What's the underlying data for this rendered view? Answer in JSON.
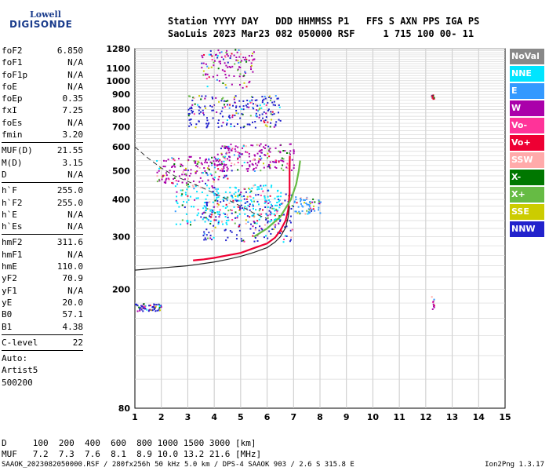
{
  "logo": {
    "top": "Lowell",
    "bottom": "DIGISONDE"
  },
  "header": {
    "line1": "Station YYYY DAY   DDD HHMMSS P1   FFS S AXN PPS IGA PS",
    "line2": "SaoLuis 2023 Mar23 082 050000 RSF     1 715 100 00- 11"
  },
  "params": [
    {
      "group": [
        [
          "foF2",
          "6.850"
        ],
        [
          "foF1",
          "N/A"
        ],
        [
          "foF1p",
          "N/A"
        ],
        [
          "foE",
          "N/A"
        ],
        [
          "foEp",
          "0.35"
        ],
        [
          "fxI",
          "7.25"
        ],
        [
          "foEs",
          "N/A"
        ],
        [
          "fmin",
          "3.20"
        ]
      ]
    },
    {
      "group": [
        [
          "MUF(D)",
          "21.55"
        ],
        [
          "M(D)",
          "3.15"
        ],
        [
          "D",
          "N/A"
        ]
      ]
    },
    {
      "group": [
        [
          "h`F",
          "255.0"
        ],
        [
          "h`F2",
          "255.0"
        ],
        [
          "h`E",
          "N/A"
        ],
        [
          "h`Es",
          "N/A"
        ]
      ]
    },
    {
      "group": [
        [
          "hmF2",
          "311.6"
        ],
        [
          "hmF1",
          "N/A"
        ],
        [
          "hmE",
          "110.0"
        ],
        [
          "yF2",
          "70.9"
        ],
        [
          "yF1",
          "N/A"
        ],
        [
          "yE",
          "20.0"
        ],
        [
          "B0",
          "57.1"
        ],
        [
          "B1",
          "4.38"
        ]
      ]
    },
    {
      "group": [
        [
          "C-level",
          "22"
        ]
      ]
    }
  ],
  "auto": [
    "Auto:",
    "Artist5",
    "500200"
  ],
  "legend": [
    {
      "label": "NoVal",
      "color": "#888888"
    },
    {
      "label": "NNE",
      "color": "#00e5ff"
    },
    {
      "label": "E",
      "color": "#3399ff"
    },
    {
      "label": "W",
      "color": "#aa00aa"
    },
    {
      "label": "Vo-",
      "color": "#ff3399"
    },
    {
      "label": "Vo+",
      "color": "#ee0033"
    },
    {
      "label": "SSW",
      "color": "#ffaaaa"
    },
    {
      "label": "X-",
      "color": "#007700"
    },
    {
      "label": "X+",
      "color": "#66bb44"
    },
    {
      "label": "SSE",
      "color": "#cccc00"
    },
    {
      "label": "NNW",
      "color": "#2222cc"
    }
  ],
  "dmuf": {
    "d_line": "D     100  200  400  600  800 1000 1500 3000 [km]",
    "muf_line": "MUF   7.2  7.3  7.6  8.1  8.9 10.0 13.2 21.6 [MHz]"
  },
  "footer": "SAAOK_2023082050000.RSF / 280fx256h 50 kHz 5.0 km / DPS-4 SAAOK 903 / 2.6 S 315.8 E",
  "version": "Ion2Png 1.3.17",
  "chart_data": {
    "type": "scatter",
    "title": "",
    "xlabel": "",
    "ylabel": "",
    "xlim": [
      1,
      15
    ],
    "ylim": [
      80,
      1280
    ],
    "y_scale": "log",
    "x_ticks": [
      "1",
      "2",
      "3",
      "4",
      "5",
      "6",
      "7",
      "8",
      "9",
      "10",
      "11",
      "12",
      "13",
      "14",
      "15"
    ],
    "y_ticks": [
      "1280",
      "1100",
      "1000",
      "900",
      "800",
      "700",
      "600",
      "500",
      "400",
      "300",
      "200",
      "80"
    ],
    "y_tick_values": [
      1280,
      1100,
      1000,
      900,
      800,
      700,
      600,
      500,
      400,
      300,
      200,
      80
    ],
    "grid": true,
    "traces": [
      {
        "name": "O-trace",
        "color": "#ee0033",
        "points": [
          [
            3.2,
            250
          ],
          [
            3.6,
            252
          ],
          [
            4.0,
            255
          ],
          [
            4.5,
            260
          ],
          [
            5.0,
            265
          ],
          [
            5.5,
            275
          ],
          [
            6.0,
            285
          ],
          [
            6.3,
            298
          ],
          [
            6.5,
            315
          ],
          [
            6.7,
            340
          ],
          [
            6.8,
            370
          ],
          [
            6.85,
            420
          ],
          [
            6.85,
            500
          ],
          [
            6.86,
            560
          ]
        ]
      },
      {
        "name": "X-trace",
        "color": "#66bb44",
        "points": [
          [
            5.5,
            300
          ],
          [
            6.0,
            320
          ],
          [
            6.5,
            350
          ],
          [
            6.9,
            400
          ],
          [
            7.1,
            450
          ],
          [
            7.2,
            500
          ],
          [
            7.25,
            540
          ]
        ]
      },
      {
        "name": "model",
        "color": "#222222",
        "points": [
          [
            1.0,
            232
          ],
          [
            2.0,
            236
          ],
          [
            3.0,
            240
          ],
          [
            4.0,
            247
          ],
          [
            4.5,
            252
          ],
          [
            5.0,
            258
          ],
          [
            5.5,
            266
          ],
          [
            6.0,
            276
          ],
          [
            6.3,
            288
          ],
          [
            6.5,
            300
          ],
          [
            6.7,
            322
          ],
          [
            6.8,
            350
          ],
          [
            6.85,
            380
          ]
        ]
      },
      {
        "name": "dashed",
        "color": "#333333",
        "points": [
          [
            1.0,
            600
          ],
          [
            1.5,
            550
          ],
          [
            2.0,
            510
          ],
          [
            2.5,
            480
          ],
          [
            3.0,
            460
          ],
          [
            3.5,
            440
          ],
          [
            4.0,
            420
          ],
          [
            4.5,
            400
          ],
          [
            5.0,
            380
          ],
          [
            5.5,
            360
          ],
          [
            6.0,
            345
          ]
        ]
      }
    ],
    "scatter_clusters": [
      {
        "x0": 1.0,
        "x1": 2.0,
        "y0": 170,
        "y1": 180,
        "color": "#2222cc"
      },
      {
        "x0": 1.8,
        "x1": 4.5,
        "y0": 450,
        "y1": 560,
        "color": "#aa00aa"
      },
      {
        "x0": 3.0,
        "x1": 6.5,
        "y0": 700,
        "y1": 900,
        "color": "#2222cc"
      },
      {
        "x0": 3.5,
        "x1": 5.5,
        "y0": 950,
        "y1": 1280,
        "color": "#aa00aa"
      },
      {
        "x0": 4.0,
        "x1": 7.0,
        "y0": 500,
        "y1": 620,
        "color": "#aa00aa"
      },
      {
        "x0": 3.5,
        "x1": 7.0,
        "y0": 290,
        "y1": 420,
        "color": "#2222cc"
      },
      {
        "x0": 2.5,
        "x1": 6.5,
        "y0": 330,
        "y1": 450,
        "color": "#00e5ff"
      },
      {
        "x0": 7.0,
        "x1": 8.0,
        "y0": 360,
        "y1": 410,
        "color": "#3399ff"
      },
      {
        "x0": 12.2,
        "x1": 12.3,
        "y0": 870,
        "y1": 900,
        "color": "#ee0033"
      },
      {
        "x0": 12.2,
        "x1": 12.3,
        "y0": 170,
        "y1": 190,
        "color": "#aa00aa"
      }
    ]
  }
}
